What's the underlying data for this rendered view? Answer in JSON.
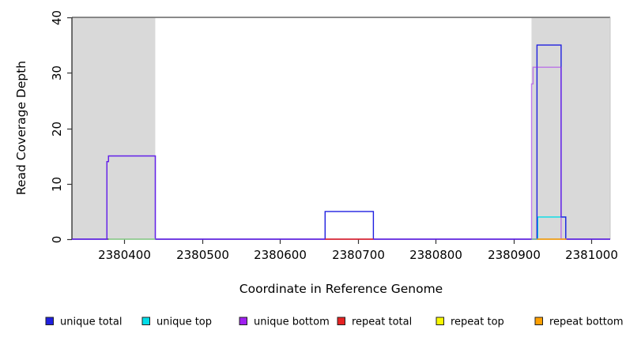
{
  "chart_data": {
    "type": "line",
    "subtype": "step-coverage",
    "title": "",
    "xlabel": "Coordinate in Reference Genome",
    "ylabel": "Read Coverage Depth",
    "xlim": [
      2380333,
      2381024
    ],
    "ylim": [
      0,
      40
    ],
    "xticks": [
      2380400,
      2380500,
      2380600,
      2380700,
      2380800,
      2380900,
      2381000
    ],
    "yticks": [
      0,
      10,
      20,
      30,
      40
    ],
    "grid": false,
    "shade_color": "#d9d9d9",
    "shaded_regions": [
      {
        "from": 2380333,
        "to": 2380440
      },
      {
        "from": 2380923,
        "to": 2381024
      }
    ],
    "series": [
      {
        "name": "unique top",
        "color": "#00dde8",
        "opacity": 1,
        "paths": [
          [
            [
              2380931,
              0
            ],
            [
              2380931,
              4
            ],
            [
              2380967,
              4
            ],
            [
              2380967,
              0
            ]
          ]
        ]
      },
      {
        "name": "unique total",
        "color": "#1f1fe0",
        "opacity": 1,
        "paths": [
          [
            [
              2380333,
              0
            ],
            [
              2380378,
              0
            ],
            [
              2380378,
              14
            ],
            [
              2380380,
              14
            ],
            [
              2380380,
              15
            ],
            [
              2380440,
              15
            ],
            [
              2380440,
              0
            ],
            [
              2380658,
              0
            ],
            [
              2380658,
              5
            ],
            [
              2380720,
              5
            ],
            [
              2380720,
              0
            ],
            [
              2380930,
              0
            ],
            [
              2380930,
              35
            ],
            [
              2380961,
              35
            ],
            [
              2380961,
              4
            ],
            [
              2380967,
              4
            ],
            [
              2380967,
              0
            ],
            [
              2381024,
              0
            ]
          ]
        ]
      },
      {
        "name": "unique bottom",
        "color": "#a020f0",
        "opacity": 0.55,
        "paths": [
          [
            [
              2380333,
              0
            ],
            [
              2380378,
              0
            ],
            [
              2380378,
              14
            ],
            [
              2380380,
              14
            ],
            [
              2380380,
              15
            ],
            [
              2380440,
              15
            ],
            [
              2380440,
              0
            ],
            [
              2380923,
              0
            ],
            [
              2380923,
              28
            ],
            [
              2380925,
              28
            ],
            [
              2380925,
              31
            ],
            [
              2380961,
              31
            ],
            [
              2380961,
              0
            ],
            [
              2381024,
              0
            ]
          ]
        ]
      },
      {
        "name": "repeat total",
        "color": "#e62222",
        "opacity": 1,
        "paths": [
          [
            [
              2380658,
              0
            ],
            [
              2380720,
              0
            ]
          ]
        ]
      },
      {
        "name": "repeat top",
        "color": "#f8f800",
        "opacity": 1,
        "paths": []
      },
      {
        "name": "repeat bottom",
        "color": "#ffa000",
        "opacity": 1,
        "paths": [
          [
            [
              2380930,
              0
            ],
            [
              2380968,
              0
            ]
          ]
        ]
      },
      {
        "name": "baseline overlap segment",
        "color": "#90d690",
        "opacity": 1,
        "paths": [
          [
            [
              2380380,
              0
            ],
            [
              2380440,
              0
            ]
          ],
          [
            [
              2380923,
              0
            ],
            [
              2380930,
              0
            ]
          ]
        ]
      }
    ],
    "legend": {
      "position": "bottom",
      "items": [
        {
          "label": "unique total",
          "color": "#1f1fe0"
        },
        {
          "label": "unique top",
          "color": "#00dde8"
        },
        {
          "label": "unique bottom",
          "color": "#a020f0"
        },
        {
          "label": "repeat total",
          "color": "#e62222"
        },
        {
          "label": "repeat top",
          "color": "#f8f800"
        },
        {
          "label": "repeat bottom",
          "color": "#ffa000"
        }
      ]
    },
    "colors": {
      "shade": "#d9d9d9",
      "box_top": "#7a7a7a",
      "box_right": "#c6c6c6",
      "axis": "#1a1a1a",
      "tick_text": "#000000"
    }
  }
}
